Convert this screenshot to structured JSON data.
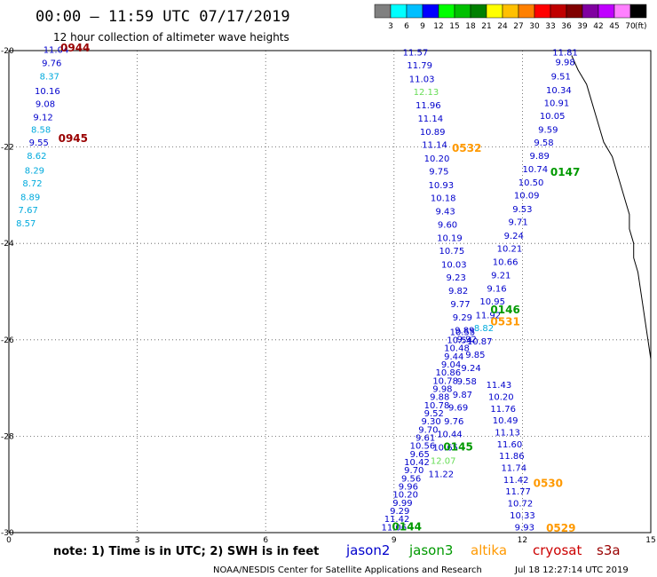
{
  "title": "00:00 – 11:59 UTC 07/17/2019",
  "subtitle": "12 hour collection of altimeter wave heights",
  "colorbar": {
    "unit": "(ft)",
    "ticks": [
      "3",
      "6",
      "9",
      "12",
      "15",
      "18",
      "21",
      "24",
      "27",
      "30",
      "33",
      "36",
      "39",
      "42",
      "45",
      "70"
    ],
    "colors": [
      "#808080",
      "#00ffff",
      "#00bfff",
      "#0000ff",
      "#00ff00",
      "#00c000",
      "#008000",
      "#ffff00",
      "#ffc000",
      "#ff8000",
      "#ff0000",
      "#c00000",
      "#800000",
      "#8000a0",
      "#c000ff",
      "#ff80ff",
      "#000000"
    ]
  },
  "footer": {
    "note": "note: 1) Time is in UTC; 2) SWH is in feet",
    "legend": [
      {
        "name": "jason2",
        "color": "#0000cc"
      },
      {
        "name": "jason3",
        "color": "#009900"
      },
      {
        "name": "altika",
        "color": "#ff9900"
      },
      {
        "name": "cryosat",
        "color": "#cc0000"
      },
      {
        "name": "s3a",
        "color": "#990000"
      }
    ],
    "credit": "NOAA/NESDIS Center for Satellite Applications and Research",
    "timestamp": "Jul 18 12:27:14 UTC 2019"
  },
  "chart_data": {
    "type": "scatter",
    "xlim": [
      0,
      15
    ],
    "ylim": [
      -30,
      -20
    ],
    "xticks": [
      "0",
      "3",
      "6",
      "9",
      "12",
      "15"
    ],
    "yticks": [
      "-20",
      "-22",
      "-24",
      "-26",
      "-28",
      "-30"
    ],
    "grid": true,
    "series": [
      {
        "name": "cryosat",
        "points": [
          {
            "x": 1.1,
            "y": -20.05,
            "v": "11.04"
          },
          {
            "x": 1.0,
            "y": -20.32,
            "v": "9.76"
          },
          {
            "x": 0.95,
            "y": -20.6,
            "v": "8.37"
          },
          {
            "x": 0.9,
            "y": -20.9,
            "v": "10.16"
          },
          {
            "x": 0.85,
            "y": -21.17,
            "v": "9.08"
          },
          {
            "x": 0.8,
            "y": -21.45,
            "v": "9.12"
          },
          {
            "x": 0.75,
            "y": -21.7,
            "v": "8.58"
          },
          {
            "x": 0.7,
            "y": -21.97,
            "v": "9.55"
          },
          {
            "x": 0.65,
            "y": -22.25,
            "v": "8.62"
          },
          {
            "x": 0.6,
            "y": -22.55,
            "v": "8.29"
          },
          {
            "x": 0.55,
            "y": -22.82,
            "v": "8.72"
          },
          {
            "x": 0.5,
            "y": -23.1,
            "v": "8.89"
          },
          {
            "x": 0.45,
            "y": -23.37,
            "v": "7.67"
          },
          {
            "x": 0.4,
            "y": -23.65,
            "v": "8.57"
          }
        ]
      },
      {
        "name": "jason2",
        "points": [
          {
            "x": 9.5,
            "y": -20.1,
            "v": "11.57"
          },
          {
            "x": 9.6,
            "y": -20.37,
            "v": "11.79"
          },
          {
            "x": 9.65,
            "y": -20.65,
            "v": "11.03"
          },
          {
            "x": 9.75,
            "y": -20.92,
            "v": "12.13"
          },
          {
            "x": 9.8,
            "y": -21.2,
            "v": "11.96"
          },
          {
            "x": 9.85,
            "y": -21.47,
            "v": "11.14"
          },
          {
            "x": 9.9,
            "y": -21.75,
            "v": "10.89"
          },
          {
            "x": 9.95,
            "y": -22.02,
            "v": "11.14"
          },
          {
            "x": 10.0,
            "y": -22.3,
            "v": "10.20"
          },
          {
            "x": 10.05,
            "y": -22.57,
            "v": "9.75"
          },
          {
            "x": 10.1,
            "y": -22.85,
            "v": "10.93"
          },
          {
            "x": 10.15,
            "y": -23.12,
            "v": "10.18"
          },
          {
            "x": 10.2,
            "y": -23.4,
            "v": "9.43"
          },
          {
            "x": 10.25,
            "y": -23.67,
            "v": "9.60"
          },
          {
            "x": 10.3,
            "y": -23.95,
            "v": "10.19"
          },
          {
            "x": 10.35,
            "y": -24.22,
            "v": "10.75"
          },
          {
            "x": 10.4,
            "y": -24.5,
            "v": "10.03"
          },
          {
            "x": 10.45,
            "y": -24.77,
            "v": "9.23"
          },
          {
            "x": 10.5,
            "y": -25.05,
            "v": "9.82"
          },
          {
            "x": 10.55,
            "y": -25.32,
            "v": "9.77"
          },
          {
            "x": 10.6,
            "y": -25.6,
            "v": "9.29"
          },
          {
            "x": 10.65,
            "y": -25.87,
            "v": "9.89"
          },
          {
            "x": 10.7,
            "y": -26.05,
            "v": "9.92"
          }
        ]
      },
      {
        "name": "jason3",
        "points": [
          {
            "x": 13.0,
            "y": -20.1,
            "v": "11.81"
          },
          {
            "x": 13.0,
            "y": -20.3,
            "v": "9.98"
          },
          {
            "x": 12.9,
            "y": -20.6,
            "v": "9.51"
          },
          {
            "x": 12.85,
            "y": -20.88,
            "v": "10.34"
          },
          {
            "x": 12.8,
            "y": -21.15,
            "v": "10.91"
          },
          {
            "x": 12.7,
            "y": -21.42,
            "v": "10.05"
          },
          {
            "x": 12.6,
            "y": -21.7,
            "v": "9.59"
          },
          {
            "x": 12.5,
            "y": -21.97,
            "v": "9.58"
          },
          {
            "x": 12.4,
            "y": -22.25,
            "v": "9.89"
          },
          {
            "x": 12.3,
            "y": -22.52,
            "v": "10.74"
          },
          {
            "x": 12.2,
            "y": -22.8,
            "v": "10.50"
          },
          {
            "x": 12.1,
            "y": -23.07,
            "v": "10.09"
          },
          {
            "x": 12.0,
            "y": -23.35,
            "v": "9.53"
          },
          {
            "x": 11.9,
            "y": -23.62,
            "v": "9.71"
          },
          {
            "x": 11.8,
            "y": -23.9,
            "v": "9.24"
          },
          {
            "x": 11.7,
            "y": -24.17,
            "v": "10.21"
          },
          {
            "x": 11.6,
            "y": -24.45,
            "v": "10.66"
          },
          {
            "x": 11.5,
            "y": -24.72,
            "v": "9.21"
          },
          {
            "x": 11.4,
            "y": -25.0,
            "v": "9.16"
          },
          {
            "x": 11.3,
            "y": -25.27,
            "v": "10.95"
          },
          {
            "x": 11.2,
            "y": -25.55,
            "v": "11.92"
          },
          {
            "x": 11.1,
            "y": -25.82,
            "v": "8.82"
          },
          {
            "x": 11.0,
            "y": -26.1,
            "v": "10.87"
          },
          {
            "x": 10.9,
            "y": -26.37,
            "v": "9.85"
          },
          {
            "x": 10.8,
            "y": -26.65,
            "v": "9.24"
          },
          {
            "x": 10.7,
            "y": -26.92,
            "v": "9.58"
          },
          {
            "x": 10.6,
            "y": -27.2,
            "v": "9.87"
          },
          {
            "x": 10.5,
            "y": -27.47,
            "v": "9.69"
          },
          {
            "x": 10.4,
            "y": -27.75,
            "v": "9.76"
          },
          {
            "x": 10.3,
            "y": -28.02,
            "v": "10.44"
          },
          {
            "x": 10.2,
            "y": -28.3,
            "v": "10.65"
          },
          {
            "x": 10.15,
            "y": -28.57,
            "v": "12.07"
          },
          {
            "x": 10.1,
            "y": -28.85,
            "v": "11.22"
          }
        ]
      }
    ],
    "track_labels": [
      {
        "text": "0944",
        "color": "#990000"
      },
      {
        "text": "0945",
        "color": "#990000"
      },
      {
        "text": "0532",
        "color": "#ff9900"
      },
      {
        "text": "0147",
        "color": "#009900"
      },
      {
        "text": "0146",
        "color": "#009900"
      },
      {
        "text": "0531",
        "color": "#ff9900"
      },
      {
        "text": "0145",
        "color": "#009900"
      },
      {
        "text": "0530",
        "color": "#ff9900"
      },
      {
        "text": "0144",
        "color": "#009900"
      },
      {
        "text": "0529",
        "color": "#ff9900"
      }
    ],
    "lower_tracks": [
      {
        "name": "jason2-south",
        "values": [
          "10.55",
          "10.54",
          "10.48",
          "9.44",
          "9.04",
          "10.86",
          "10.78",
          "9.98",
          "9.88",
          "10.78",
          "9.52",
          "9.30",
          "9.70",
          "9.61",
          "10.56",
          "9.65",
          "10.42",
          "9.70",
          "9.56",
          "9.96",
          "10.20",
          "9.99",
          "9.29",
          "11.42",
          "11.06"
        ]
      },
      {
        "name": "jason3-south",
        "values": [
          "11.43",
          "10.20",
          "11.76",
          "10.49",
          "11.13",
          "11.60",
          "11.86",
          "11.74",
          "11.42",
          "11.77",
          "10.72",
          "10.33",
          "9.93"
        ]
      }
    ]
  }
}
